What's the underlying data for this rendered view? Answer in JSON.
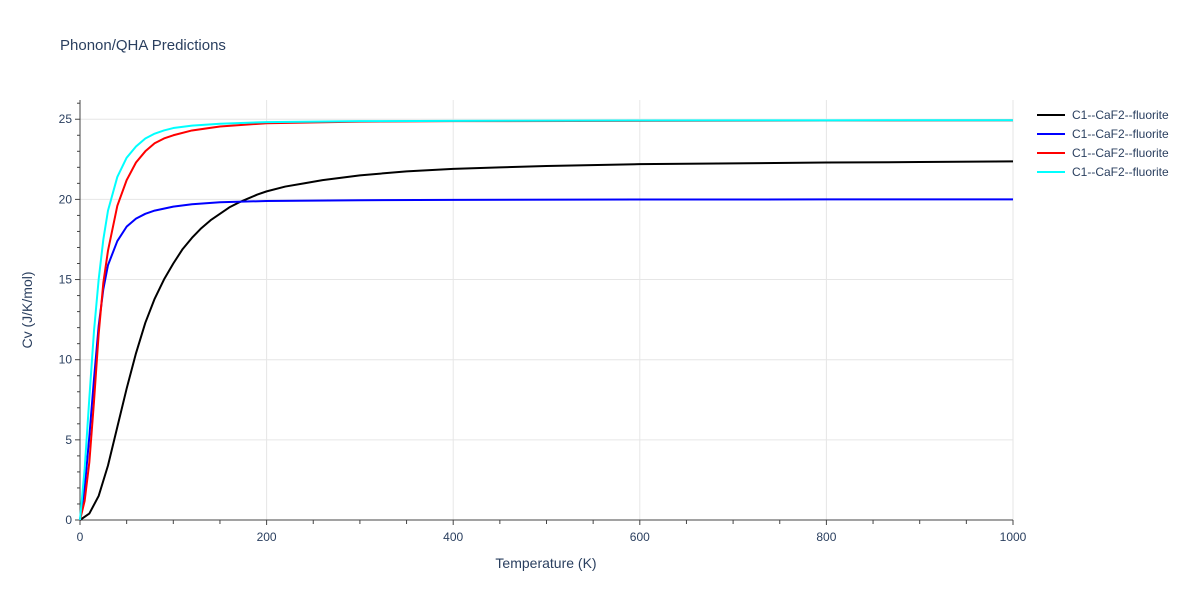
{
  "chart_data": {
    "type": "line",
    "title": "Phonon/QHA Predictions",
    "xlabel": "Temperature (K)",
    "ylabel": "Cv (J/K/mol)",
    "xlim": [
      0,
      1000
    ],
    "ylim": [
      0,
      26.2
    ],
    "x_ticks": [
      0,
      200,
      400,
      600,
      800,
      1000
    ],
    "y_ticks": [
      0,
      5,
      10,
      15,
      20,
      25
    ],
    "grid": true,
    "legend_position": "top-right",
    "series": [
      {
        "name": "C1--CaF2--fluorite",
        "color": "#000000",
        "x": [
          0,
          10,
          20,
          30,
          40,
          50,
          60,
          70,
          80,
          90,
          100,
          110,
          120,
          130,
          140,
          150,
          160,
          170,
          180,
          190,
          200,
          220,
          240,
          260,
          280,
          300,
          350,
          400,
          450,
          500,
          600,
          700,
          800,
          900,
          1000
        ],
        "y": [
          0,
          0.4,
          1.5,
          3.4,
          5.8,
          8.2,
          10.4,
          12.3,
          13.8,
          15.0,
          16.0,
          16.9,
          17.6,
          18.2,
          18.7,
          19.1,
          19.5,
          19.8,
          20.05,
          20.3,
          20.5,
          20.8,
          21.0,
          21.2,
          21.35,
          21.5,
          21.75,
          21.9,
          22.0,
          22.08,
          22.2,
          22.25,
          22.3,
          22.33,
          22.37
        ]
      },
      {
        "name": "C1--CaF2--fluorite",
        "color": "#0000ff",
        "x": [
          0,
          5,
          10,
          15,
          20,
          25,
          30,
          40,
          50,
          60,
          70,
          80,
          100,
          120,
          150,
          200,
          300,
          400,
          600,
          800,
          1000
        ],
        "y": [
          0,
          2.0,
          5.2,
          8.8,
          12.1,
          14.4,
          15.9,
          17.4,
          18.3,
          18.8,
          19.1,
          19.3,
          19.55,
          19.7,
          19.82,
          19.9,
          19.95,
          19.97,
          19.99,
          20.0,
          20.0
        ]
      },
      {
        "name": "C1--CaF2--fluorite",
        "color": "#ff0000",
        "x": [
          0,
          5,
          10,
          15,
          20,
          25,
          30,
          40,
          50,
          60,
          70,
          80,
          90,
          100,
          120,
          150,
          200,
          300,
          400,
          600,
          800,
          1000
        ],
        "y": [
          0,
          1.2,
          3.6,
          7.4,
          11.6,
          14.8,
          16.8,
          19.6,
          21.2,
          22.3,
          23.0,
          23.5,
          23.8,
          24.0,
          24.3,
          24.55,
          24.75,
          24.85,
          24.88,
          24.9,
          24.92,
          24.93
        ]
      },
      {
        "name": "C1--CaF2--fluorite",
        "color": "#00ffff",
        "x": [
          0,
          5,
          10,
          15,
          20,
          25,
          30,
          40,
          50,
          60,
          70,
          80,
          90,
          100,
          120,
          150,
          200,
          300,
          400,
          600,
          800,
          1000
        ],
        "y": [
          0,
          3.2,
          7.6,
          11.8,
          15.0,
          17.5,
          19.3,
          21.4,
          22.6,
          23.3,
          23.8,
          24.1,
          24.3,
          24.45,
          24.6,
          24.72,
          24.82,
          24.88,
          24.9,
          24.92,
          24.93,
          24.94
        ]
      }
    ]
  }
}
